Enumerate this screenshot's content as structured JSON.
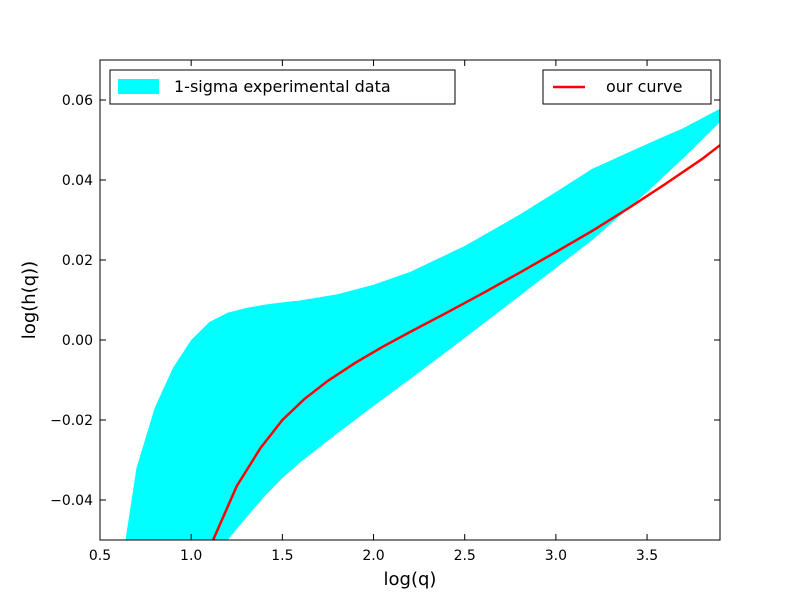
{
  "chart_data": {
    "type": "area",
    "title": "",
    "xlabel": "log(q)",
    "ylabel": "log(h(q))",
    "xlim": [
      0.5,
      3.9
    ],
    "ylim": [
      -0.05,
      0.07
    ],
    "xticks": [
      0.5,
      1.0,
      1.5,
      2.0,
      2.5,
      3.0,
      3.5
    ],
    "xtick_labels": [
      "0.5",
      "1.0",
      "1.5",
      "2.0",
      "2.5",
      "3.0",
      "3.5"
    ],
    "yticks": [
      -0.04,
      -0.02,
      0.0,
      0.02,
      0.04,
      0.06
    ],
    "ytick_labels": [
      "−0.04",
      "−0.02",
      "0.00",
      "0.02",
      "0.04",
      "0.06"
    ],
    "grid": false,
    "band": {
      "name": "1-sigma experimental data",
      "color": "#00ffff",
      "x": [
        0.64,
        0.7,
        0.8,
        0.9,
        1.0,
        1.1,
        1.2,
        1.3,
        1.4,
        1.5,
        1.6,
        1.8,
        2.0,
        2.2,
        2.5,
        2.8,
        3.0,
        3.2,
        3.5,
        3.7,
        3.9
      ],
      "upper": [
        -0.05,
        -0.032,
        -0.017,
        -0.007,
        0.0,
        0.0045,
        0.0068,
        0.008,
        0.0088,
        0.0094,
        0.0099,
        0.0114,
        0.0138,
        0.017,
        0.0235,
        0.0313,
        0.037,
        0.0428,
        0.049,
        0.053,
        0.0578
      ],
      "lower": [
        null,
        null,
        null,
        null,
        null,
        null,
        -0.05,
        -0.0445,
        -0.0392,
        -0.0345,
        -0.0305,
        -0.0234,
        -0.0165,
        -0.0098,
        0.0005,
        0.011,
        0.018,
        0.025,
        0.037,
        0.0455,
        0.0545
      ]
    },
    "series": [
      {
        "name": "our curve",
        "color": "#ff0000",
        "x": [
          1.12,
          1.25,
          1.38,
          1.5,
          1.62,
          1.75,
          1.9,
          2.05,
          2.2,
          2.4,
          2.6,
          2.8,
          3.0,
          3.2,
          3.4,
          3.6,
          3.8,
          3.9
        ],
        "y": [
          -0.05,
          -0.0365,
          -0.027,
          -0.02,
          -0.0148,
          -0.0102,
          -0.0057,
          -0.0017,
          0.002,
          0.0068,
          0.0117,
          0.0168,
          0.022,
          0.0273,
          0.033,
          0.039,
          0.0452,
          0.0487
        ]
      }
    ],
    "legend": [
      {
        "label": "1-sigma experimental data",
        "kind": "patch",
        "placement": "top-left"
      },
      {
        "label": "our curve",
        "kind": "line",
        "placement": "top-right"
      }
    ]
  }
}
